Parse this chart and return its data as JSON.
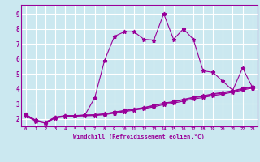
{
  "xlabel": "Windchill (Refroidissement éolien,°C)",
  "background_color": "#cbe8f0",
  "grid_color": "#ffffff",
  "line_color": "#990099",
  "xlim": [
    -0.5,
    23.5
  ],
  "ylim": [
    1.5,
    9.6
  ],
  "xticks": [
    0,
    1,
    2,
    3,
    4,
    5,
    6,
    7,
    8,
    9,
    10,
    11,
    12,
    13,
    14,
    15,
    16,
    17,
    18,
    19,
    20,
    21,
    22,
    23
  ],
  "yticks": [
    2,
    3,
    4,
    5,
    6,
    7,
    8,
    9
  ],
  "line1_x": [
    0,
    1,
    2,
    3,
    4,
    5,
    6,
    7,
    8,
    9,
    10,
    11,
    12,
    13,
    14,
    15,
    16,
    17,
    18,
    19,
    20,
    21,
    22,
    23
  ],
  "line1_y": [
    2.3,
    1.9,
    1.75,
    2.1,
    2.2,
    2.2,
    2.25,
    3.4,
    5.9,
    7.5,
    7.8,
    7.8,
    7.3,
    7.25,
    9.0,
    7.3,
    8.0,
    7.3,
    5.2,
    5.1,
    4.5,
    3.9,
    5.4,
    4.1
  ],
  "line2_x": [
    0,
    1,
    2,
    3,
    4,
    5,
    6,
    7,
    8,
    9,
    10,
    11,
    12,
    13,
    14,
    15,
    16,
    17,
    18,
    19,
    20,
    21,
    22,
    23
  ],
  "line2_y": [
    2.2,
    1.85,
    1.72,
    2.05,
    2.15,
    2.18,
    2.2,
    2.22,
    2.28,
    2.38,
    2.48,
    2.58,
    2.68,
    2.8,
    2.95,
    3.05,
    3.18,
    3.32,
    3.42,
    3.55,
    3.65,
    3.78,
    3.92,
    4.05
  ],
  "line3_x": [
    0,
    1,
    2,
    3,
    4,
    5,
    6,
    7,
    8,
    9,
    10,
    11,
    12,
    13,
    14,
    15,
    16,
    17,
    18,
    19,
    20,
    21,
    22,
    23
  ],
  "line3_y": [
    2.25,
    1.88,
    1.74,
    2.08,
    2.18,
    2.2,
    2.23,
    2.25,
    2.32,
    2.43,
    2.53,
    2.63,
    2.73,
    2.87,
    3.02,
    3.12,
    3.27,
    3.4,
    3.5,
    3.63,
    3.72,
    3.84,
    3.98,
    4.1
  ],
  "line4_x": [
    0,
    1,
    2,
    3,
    4,
    5,
    6,
    7,
    8,
    9,
    10,
    11,
    12,
    13,
    14,
    15,
    16,
    17,
    18,
    19,
    20,
    21,
    22,
    23
  ],
  "line4_y": [
    2.28,
    1.92,
    1.78,
    2.12,
    2.22,
    2.22,
    2.26,
    2.28,
    2.34,
    2.46,
    2.56,
    2.66,
    2.76,
    2.9,
    3.05,
    3.15,
    3.3,
    3.44,
    3.54,
    3.67,
    3.77,
    3.88,
    4.02,
    4.15
  ]
}
